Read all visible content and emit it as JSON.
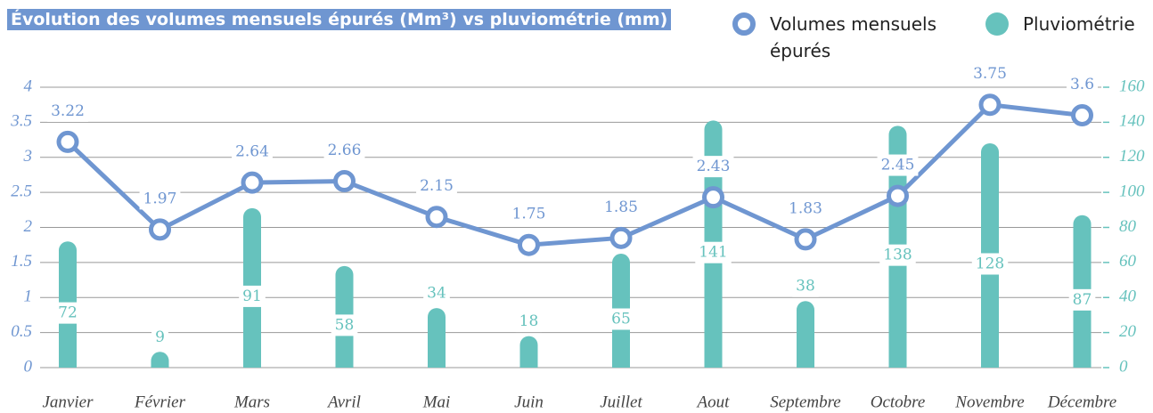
{
  "chart_data": {
    "type": "bar-line",
    "title": "Évolution des volumes mensuels épurés (Mm³) vs pluviométrie (mm)",
    "categories": [
      "Janvier",
      "Février",
      "Mars",
      "Avril",
      "Mai",
      "Juin",
      "Juillet",
      "Aout",
      "Septembre",
      "Octobre",
      "Novembre",
      "Décembre"
    ],
    "series": [
      {
        "name": "Volumes mensuels épurés",
        "type": "line",
        "color": "#6f96d1",
        "axis": "y",
        "values": [
          3.22,
          1.97,
          2.64,
          2.66,
          2.15,
          1.75,
          1.85,
          2.43,
          1.83,
          2.45,
          3.75,
          3.6
        ]
      },
      {
        "name": "Pluviométrie",
        "type": "bar",
        "color": "#66c2bd",
        "axis": "y2",
        "values": [
          72,
          9,
          91,
          58,
          34,
          18,
          65,
          141,
          38,
          138,
          128,
          87
        ]
      }
    ],
    "ylim": [
      0,
      4
    ],
    "yticks": [
      0,
      0.5,
      1,
      1.5,
      2,
      2.5,
      3,
      3.5,
      4
    ],
    "y2lim": [
      0,
      160
    ],
    "y2ticks": [
      0,
      20,
      40,
      60,
      80,
      100,
      120,
      140,
      160
    ],
    "grid": true,
    "legend": "top-right"
  }
}
